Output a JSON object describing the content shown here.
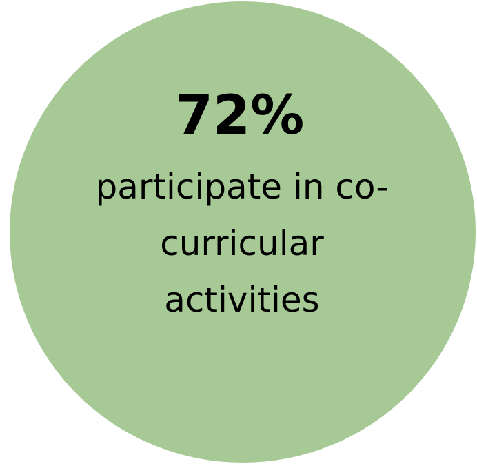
{
  "infographic": {
    "value": "72%",
    "caption_lines": [
      "participate in co-",
      "curricular",
      "activities"
    ],
    "circle_color": "#a6c995",
    "text_color": "#000000"
  }
}
